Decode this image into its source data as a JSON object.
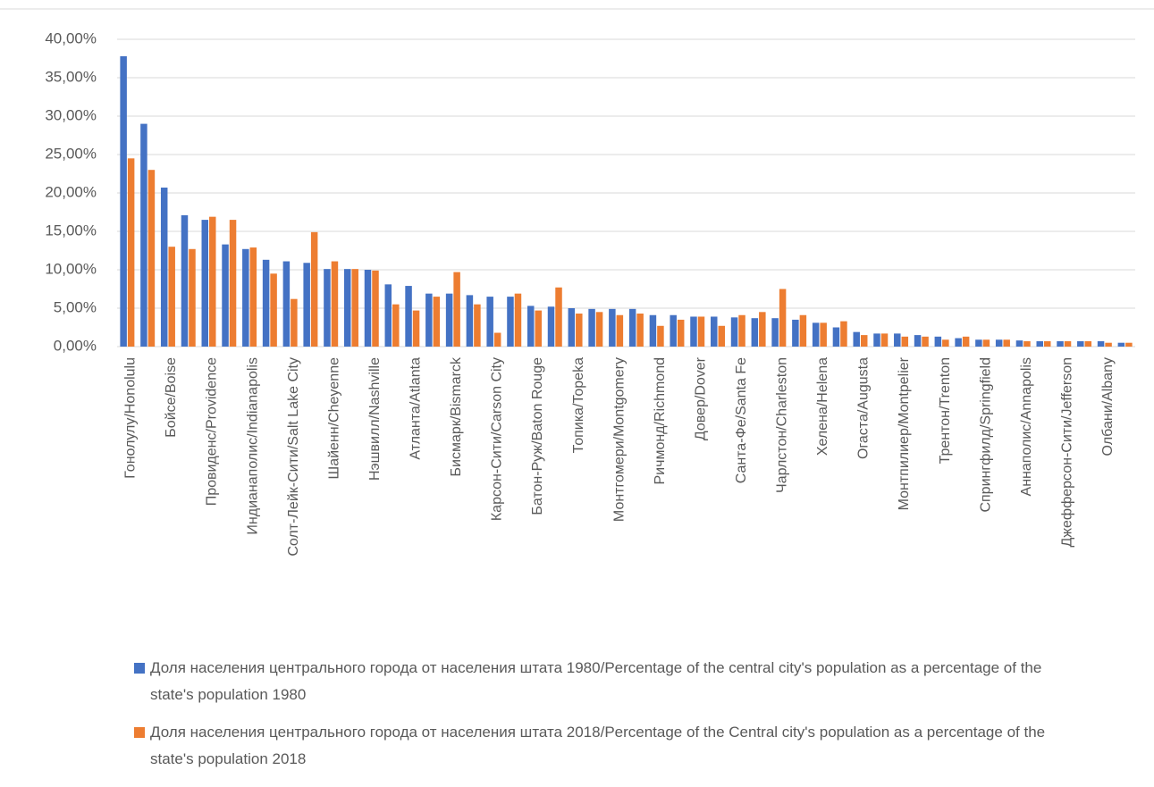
{
  "chart_data": {
    "type": "bar",
    "categories": [
      "Гонолулу/Honolulu",
      null,
      "Бойсе/Boise",
      null,
      "Провиденс/Providence",
      null,
      "Индианаполис/Indianapolis",
      null,
      "Солт-Лейк-Сити/Salt Lake City",
      null,
      "Шайенн/Cheyenne",
      null,
      "Нэшвилл/Nashville",
      null,
      "Атланта/Atlanta",
      null,
      "Бисмарк/Bismarck",
      null,
      "Карсон-Сити/Carson City",
      null,
      "Батон-Руж/Baton Rouge",
      null,
      "Топика/Topeka",
      null,
      "Монтгомери/Montgomery",
      null,
      "Ричмонд/Richmond",
      null,
      "Довер/Dover",
      null,
      "Санта-Фе/Santa Fe",
      null,
      "Чарлстон/Charleston",
      null,
      "Хелена/Helena",
      null,
      "Огаста/Augusta",
      null,
      "Монтпилиер/Montpelier",
      null,
      "Трентон/Trenton",
      null,
      "Спрингфилд/Springfield",
      null,
      "Аннаполис/Annapolis",
      null,
      "Джефферсон-Сити/Jefferson",
      null,
      "Олбани/Albany",
      null
    ],
    "series": [
      {
        "name": "Доля населения центрального города от населения штата 1980/Percentage of the central city's population as a percentage of the state's population 1980",
        "color": "#4472c4",
        "values": [
          37.8,
          29.0,
          20.7,
          17.1,
          16.5,
          13.3,
          12.7,
          11.3,
          11.1,
          10.9,
          10.1,
          10.1,
          10.0,
          8.1,
          7.9,
          6.9,
          6.9,
          6.7,
          6.5,
          6.5,
          5.3,
          5.2,
          5.0,
          4.9,
          4.9,
          4.9,
          4.1,
          4.1,
          3.9,
          3.9,
          3.8,
          3.7,
          3.7,
          3.5,
          3.1,
          2.5,
          1.9,
          1.7,
          1.7,
          1.5,
          1.3,
          1.1,
          0.9,
          0.9,
          0.8,
          0.7,
          0.7,
          0.7,
          0.7,
          0.5
        ]
      },
      {
        "name": "Доля населения центрального города от населения штата 2018/Percentage of the Central city's population as a percentage of the state's population 2018",
        "color": "#ed7d31",
        "values": [
          24.5,
          23.0,
          13.0,
          12.7,
          16.9,
          16.5,
          12.9,
          9.5,
          6.2,
          14.9,
          11.1,
          10.1,
          9.9,
          5.5,
          4.7,
          6.5,
          9.7,
          5.5,
          1.8,
          6.9,
          4.7,
          7.7,
          4.3,
          4.5,
          4.1,
          4.3,
          2.7,
          3.5,
          3.9,
          2.7,
          4.1,
          4.5,
          7.5,
          4.1,
          3.1,
          3.3,
          1.5,
          1.7,
          1.3,
          1.3,
          0.9,
          1.3,
          0.9,
          0.9,
          0.7,
          0.7,
          0.7,
          0.7,
          0.5,
          0.5
        ]
      }
    ],
    "ylim": [
      0,
      40
    ],
    "yticks": [
      {
        "value": 0,
        "label": "0,00%"
      },
      {
        "value": 5,
        "label": "5,00%"
      },
      {
        "value": 10,
        "label": "10,00%"
      },
      {
        "value": 15,
        "label": "15,00%"
      },
      {
        "value": 20,
        "label": "20,00%"
      },
      {
        "value": 25,
        "label": "25,00%"
      },
      {
        "value": 30,
        "label": "30,00%"
      },
      {
        "value": 35,
        "label": "35,00%"
      },
      {
        "value": 40,
        "label": "40,00%"
      }
    ],
    "grid": true
  }
}
